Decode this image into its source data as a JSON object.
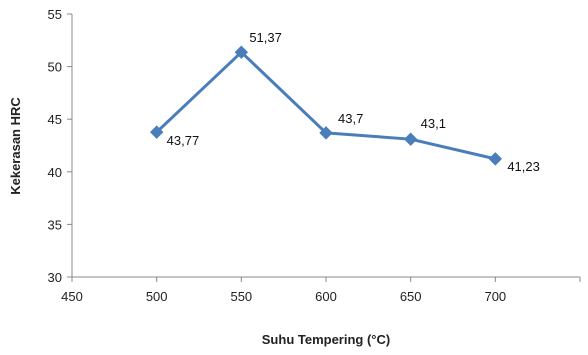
{
  "chart_data": {
    "type": "line",
    "title": "",
    "xlabel": "Suhu Tempering (°C)",
    "ylabel": "Kekerasan HRC",
    "xlim": [
      450,
      750
    ],
    "ylim": [
      30,
      55
    ],
    "x_ticks": [
      450,
      500,
      550,
      600,
      650,
      700,
      750
    ],
    "x_tick_labels": [
      "450",
      "500",
      "550",
      "600",
      "650",
      "700",
      ""
    ],
    "y_ticks": [
      30,
      35,
      40,
      45,
      50,
      55
    ],
    "y_tick_labels": [
      "30",
      "35",
      "40",
      "45",
      "50",
      "55"
    ],
    "grid": false,
    "legend": "none",
    "series": [
      {
        "marker": "diamond",
        "color": "#4a7ebb",
        "x": [
          500,
          550,
          600,
          650,
          700
        ],
        "y": [
          43.77,
          51.37,
          43.7,
          43.1,
          41.23
        ],
        "labels": [
          "43,77",
          "51,37",
          "43,7",
          "43,1",
          "41,23"
        ]
      }
    ]
  }
}
